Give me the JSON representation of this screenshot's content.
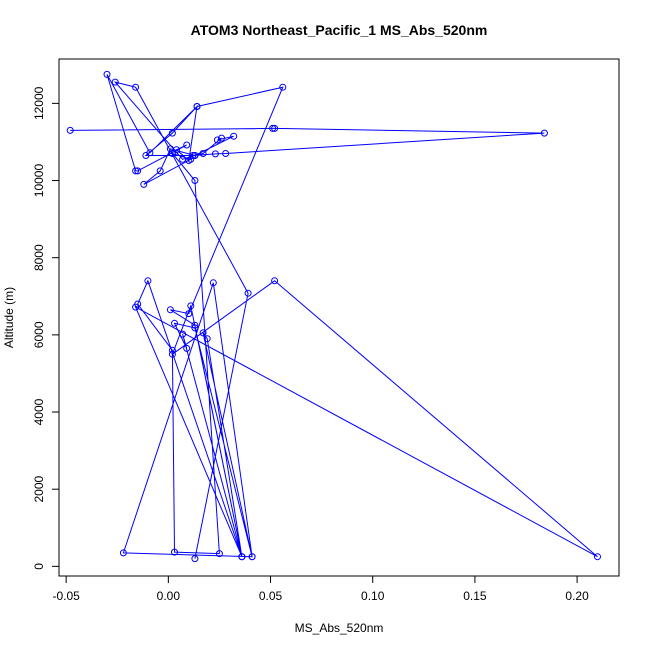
{
  "chart_data": {
    "type": "line",
    "title": "ATOM3 Northeast_Pacific_1 MS_Abs_520nm",
    "xlabel": "MS_Abs_520nm",
    "ylabel": "Altitude (m)",
    "xlim": [
      -0.0535,
      0.2205
    ],
    "ylim": [
      -250,
      13150
    ],
    "x_ticks": [
      -0.05,
      0.0,
      0.05,
      0.1,
      0.15,
      0.2
    ],
    "x_tick_labels": [
      "-0.05",
      "0.00",
      "0.05",
      "0.10",
      "0.15",
      "0.20"
    ],
    "y_ticks": [
      0,
      2000,
      4000,
      6000,
      8000,
      10000,
      12000
    ],
    "y_tick_labels": [
      "0",
      "2000",
      "4000",
      "6000",
      "8000",
      "10000",
      "12000"
    ],
    "grid": false,
    "color": "#0000ff",
    "series": [
      {
        "x": [
          -0.048,
          0.051,
          0.052,
          0.184,
          0.028,
          0.023,
          0.012,
          0.017,
          0.026,
          0.024,
          0.032,
          0.013,
          -0.011,
          0.002,
          0.014,
          0.01,
          0.004,
          0.009,
          -0.015,
          -0.016,
          -0.03,
          -0.009,
          0.014,
          0.056,
          0.01,
          0.001,
          0.013,
          0.036,
          0.019,
          0.017,
          0.041,
          -0.022,
          0.022,
          0.041,
          0.013,
          0.003,
          0.009,
          0.007,
          0.036,
          0.011,
          0.002,
          0.052,
          0.21,
          -0.016,
          0.036,
          -0.01,
          -0.015,
          0.002,
          0.003,
          0.025,
          0.013,
          0.002,
          0.011,
          -0.012,
          -0.004,
          0.001,
          0.013,
          0.007,
          -0.026,
          -0.016,
          0.039,
          0.013
        ],
        "y": [
          11300,
          11350,
          11350,
          11230,
          10700,
          10690,
          10650,
          10700,
          11100,
          11050,
          11150,
          10650,
          10650,
          11230,
          11920,
          10520,
          10800,
          10920,
          10250,
          10250,
          12750,
          10720,
          11920,
          12420,
          6550,
          6650,
          6250,
          250,
          5900,
          6050,
          250,
          350,
          7350,
          250,
          6180,
          6300,
          5650,
          6020,
          250,
          6750,
          5500,
          7400,
          250,
          6720,
          250,
          7400,
          6800,
          5600,
          370,
          330,
          10000,
          10700,
          10550,
          9900,
          10250,
          10820,
          10650,
          10550,
          12550,
          12420,
          7080,
          200
        ]
      }
    ]
  }
}
